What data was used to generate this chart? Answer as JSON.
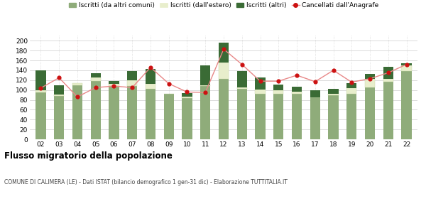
{
  "years": [
    "02",
    "03",
    "04",
    "05",
    "06",
    "07",
    "08",
    "09",
    "10",
    "11",
    "12",
    "13",
    "14",
    "15",
    "16",
    "17",
    "18",
    "19",
    "20",
    "21",
    "22"
  ],
  "iscritti_comuni": [
    95,
    88,
    110,
    118,
    108,
    108,
    103,
    92,
    84,
    108,
    123,
    103,
    93,
    93,
    92,
    85,
    90,
    92,
    105,
    117,
    138
  ],
  "iscritti_estero": [
    5,
    3,
    4,
    8,
    5,
    12,
    10,
    0,
    2,
    2,
    33,
    3,
    8,
    6,
    5,
    0,
    3,
    12,
    18,
    5,
    12
  ],
  "iscritti_altri": [
    40,
    18,
    0,
    8,
    5,
    18,
    30,
    0,
    8,
    40,
    40,
    32,
    25,
    12,
    10,
    15,
    10,
    10,
    10,
    25,
    5
  ],
  "cancellati": [
    104,
    125,
    86,
    105,
    108,
    105,
    146,
    113,
    96,
    95,
    183,
    152,
    118,
    118,
    130,
    117,
    140,
    116,
    123,
    135,
    152
  ],
  "color_comuni": "#8fac7a",
  "color_estero": "#e8eecc",
  "color_altri": "#3a6b35",
  "color_cancellati": "#cc1111",
  "color_cancellati_line": "#e88888",
  "title": "Flusso migratorio della popolazione",
  "subtitle": "COMUNE DI CALIMERA (LE) - Dati ISTAT (bilancio demografico 1 gen-31 dic) - Elaborazione TUTTITALIA.IT",
  "legend_labels": [
    "Iscritti (da altri comuni)",
    "Iscritti (dall'estero)",
    "Iscritti (altri)",
    "Cancellati dall'Anagrafe"
  ],
  "ylim": [
    0,
    210
  ],
  "yticks": [
    0,
    20,
    40,
    60,
    80,
    100,
    120,
    140,
    160,
    180,
    200
  ],
  "bg_color": "#ffffff",
  "grid_color": "#cccccc"
}
